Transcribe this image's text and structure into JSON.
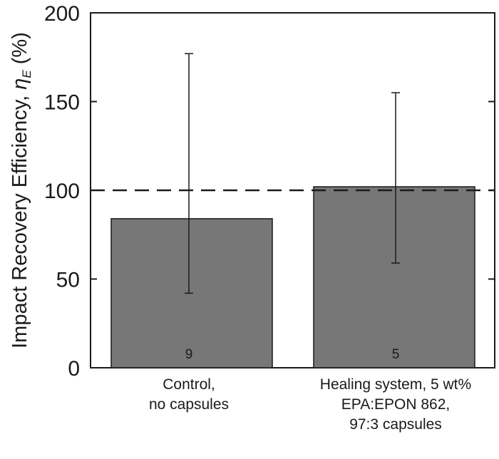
{
  "chart_data": {
    "type": "bar",
    "ylabel": {
      "main": "Impact Recovery Efficiency, ",
      "symbol": "η",
      "subscript": "E",
      "unit": " (%)"
    },
    "ylim": [
      0,
      200
    ],
    "yticks": [
      0,
      50,
      100,
      150,
      200
    ],
    "categories": [
      [
        "Control,",
        "no capsules"
      ],
      [
        "Healing system, 5 wt%",
        "EPA:EPON 862,",
        "97:3 capsules"
      ]
    ],
    "values": [
      84,
      102
    ],
    "error_low": [
      42,
      59
    ],
    "error_high": [
      177,
      155
    ],
    "sample_counts": [
      "9",
      "5"
    ],
    "reference_line": {
      "y": 100,
      "style": "dashed"
    },
    "bar_color": "#777777",
    "grid": false
  }
}
